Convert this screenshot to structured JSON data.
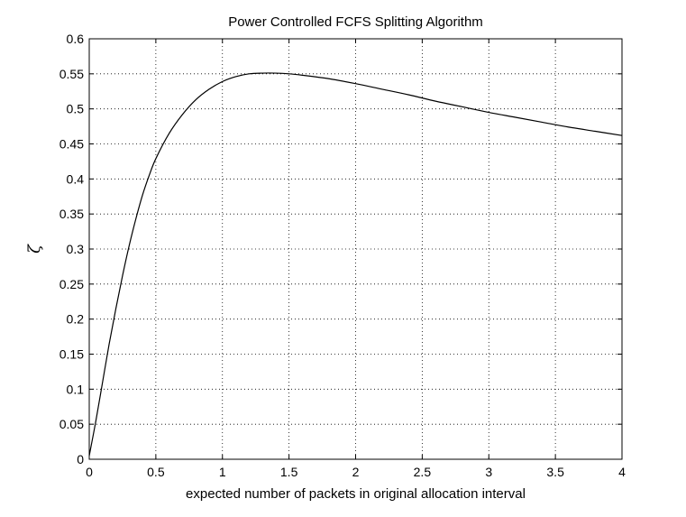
{
  "chart_data": {
    "type": "line",
    "title": "Power Controlled FCFS Splitting Algorithm",
    "xlabel": "expected number of packets in original allocation interval",
    "ylabel": "ζ",
    "xlim": [
      0,
      4
    ],
    "ylim": [
      0,
      0.6
    ],
    "xticks": [
      0,
      0.5,
      1,
      1.5,
      2,
      2.5,
      3,
      3.5,
      4
    ],
    "xtick_labels": [
      "0",
      "0.5",
      "1",
      "1.5",
      "2",
      "2.5",
      "3",
      "3.5",
      "4"
    ],
    "yticks": [
      0,
      0.05,
      0.1,
      0.15,
      0.2,
      0.25,
      0.3,
      0.35,
      0.4,
      0.45,
      0.5,
      0.55,
      0.6
    ],
    "ytick_labels": [
      "0",
      "0.05",
      "0.1",
      "0.15",
      "0.2",
      "0.25",
      "0.3",
      "0.35",
      "0.4",
      "0.45",
      "0.5",
      "0.55",
      "0.6"
    ],
    "grid": true,
    "line_color": "#000000",
    "series": [
      {
        "x": [
          0,
          0.05,
          0.1,
          0.15,
          0.2,
          0.25,
          0.3,
          0.35,
          0.4,
          0.45,
          0.5,
          0.6,
          0.7,
          0.8,
          0.9,
          1.0,
          1.1,
          1.2,
          1.3,
          1.4,
          1.5,
          1.6,
          1.8,
          2.0,
          2.2,
          2.4,
          2.6,
          2.8,
          3.0,
          3.2,
          3.4,
          3.6,
          3.8,
          4.0
        ],
        "y": [
          0.005,
          0.055,
          0.11,
          0.165,
          0.215,
          0.262,
          0.305,
          0.343,
          0.377,
          0.405,
          0.429,
          0.465,
          0.492,
          0.513,
          0.528,
          0.539,
          0.546,
          0.55,
          0.551,
          0.551,
          0.55,
          0.548,
          0.543,
          0.536,
          0.528,
          0.52,
          0.511,
          0.503,
          0.495,
          0.488,
          0.481,
          0.474,
          0.468,
          0.462
        ]
      }
    ]
  }
}
